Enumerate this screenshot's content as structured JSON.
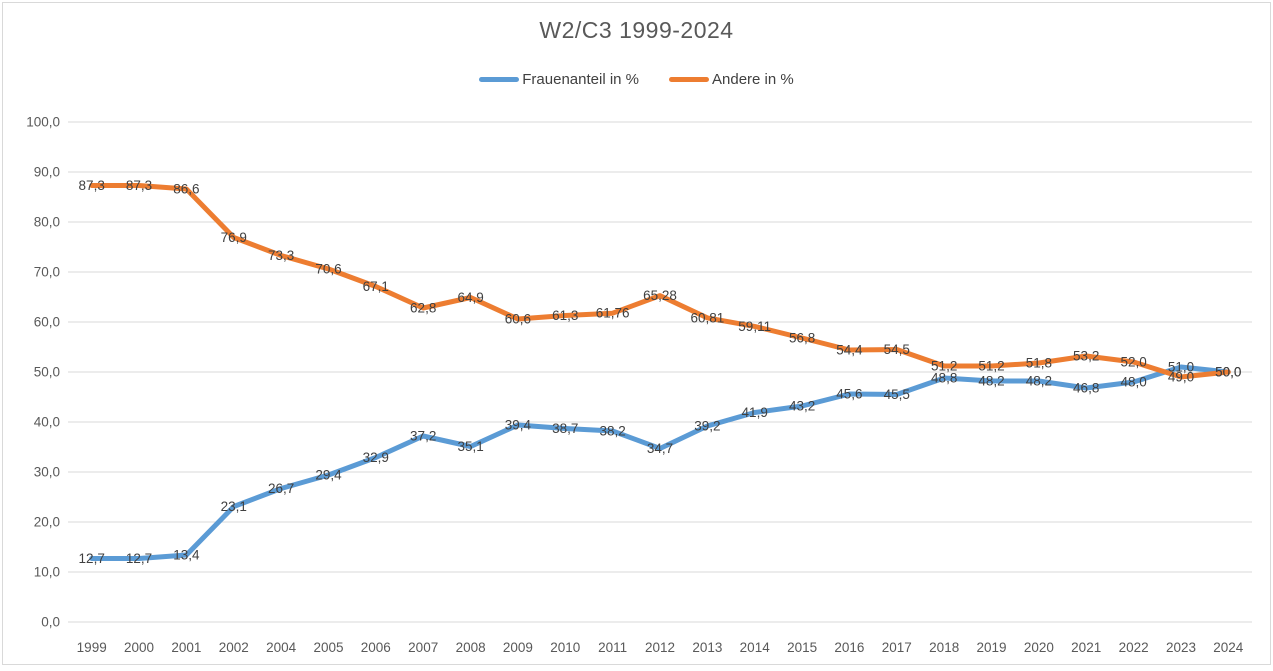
{
  "window": {
    "background": "#FFFFFF",
    "border_color": "#D9D9D9"
  },
  "chart_data": {
    "type": "line",
    "title": "W2/C3 1999-2024",
    "legend_position": "top",
    "grid": true,
    "categories": [
      "1999",
      "2000",
      "2001",
      "2002",
      "2004",
      "2005",
      "2006",
      "2007",
      "2008",
      "2009",
      "2010",
      "2011",
      "2012",
      "2013",
      "2014",
      "2015",
      "2016",
      "2017",
      "2018",
      "2019",
      "2020",
      "2021",
      "2022",
      "2023",
      "2024"
    ],
    "series": [
      {
        "name": "Frauenanteil in %",
        "color": "#5B9BD5",
        "values": [
          12.7,
          12.7,
          13.4,
          23.1,
          26.7,
          29.4,
          32.9,
          37.2,
          35.1,
          39.4,
          38.7,
          38.2,
          34.7,
          39.2,
          41.9,
          43.2,
          45.6,
          45.5,
          48.8,
          48.2,
          48.2,
          46.8,
          48.0,
          51.0,
          50.0
        ],
        "point_labels": [
          "12,7",
          "12,7",
          "13,4",
          "23,1",
          "26,7",
          "29,4",
          "32,9",
          "37,2",
          "35,1",
          "39,4",
          "38,7",
          "38,2",
          "34,7",
          "39,2",
          "41,9",
          "43,2",
          "45,6",
          "45,5",
          "48,8",
          "48,2",
          "48,2",
          "46,8",
          "48,0",
          "51,0",
          "50,0"
        ]
      },
      {
        "name": "Andere in %",
        "color": "#ED7D31",
        "values": [
          87.3,
          87.3,
          86.6,
          76.9,
          73.3,
          70.6,
          67.1,
          62.8,
          64.9,
          60.6,
          61.3,
          61.76,
          65.28,
          60.81,
          59.11,
          56.8,
          54.4,
          54.5,
          51.2,
          51.2,
          51.8,
          53.2,
          52.0,
          49.0,
          50.0
        ],
        "point_labels": [
          "87,3",
          "87,3",
          "86,6",
          "76,9",
          "73,3",
          "70,6",
          "67,1",
          "62,8",
          "64,9",
          "60,6",
          "61,3",
          "61,76",
          "65,28",
          "60,81",
          "59,11",
          "56,8",
          "54,4",
          "54,5",
          "51,2",
          "51,2",
          "51,8",
          "53,2",
          "52,0",
          "49,0",
          "50,0"
        ]
      }
    ],
    "y_axis": {
      "min": 0,
      "max": 100,
      "step": 10,
      "tick_labels": [
        "0,0",
        "10,0",
        "20,0",
        "30,0",
        "40,0",
        "50,0",
        "60,0",
        "70,0",
        "80,0",
        "90,0",
        "100,0"
      ]
    },
    "styles": {
      "gridline": "#D9D9D9",
      "axis_text": "#595959",
      "data_label_text": "#404040",
      "title_text": "#595959",
      "legend_text": "#404040",
      "line_width": 5
    }
  }
}
